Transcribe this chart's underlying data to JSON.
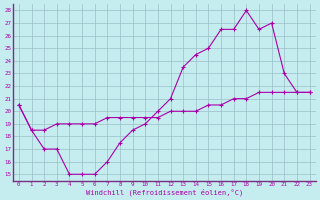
{
  "xlabel": "Windchill (Refroidissement éolien,°C)",
  "bg_color": "#c5edf0",
  "grid_color": "#9bbfc8",
  "line_color": "#aa00aa",
  "spine_color": "#7a3080",
  "xlim": [
    -0.5,
    23.5
  ],
  "ylim": [
    14.5,
    28.5
  ],
  "xticks": [
    0,
    1,
    2,
    3,
    4,
    5,
    6,
    7,
    8,
    9,
    10,
    11,
    12,
    13,
    14,
    15,
    16,
    17,
    18,
    19,
    20,
    21,
    22,
    23
  ],
  "yticks": [
    15,
    16,
    17,
    18,
    19,
    20,
    21,
    22,
    23,
    24,
    25,
    26,
    27,
    28
  ],
  "curve1_x": [
    0,
    1,
    2,
    3,
    4,
    5,
    6,
    7,
    8,
    9,
    10,
    11,
    12,
    13,
    14,
    15,
    16,
    17,
    18,
    19,
    20,
    21,
    22,
    23
  ],
  "curve1_y": [
    20.5,
    18.5,
    17.0,
    17.0,
    15.0,
    15.0,
    15.0,
    16.0,
    17.5,
    18.5,
    19.0,
    20.0,
    21.0,
    23.5,
    24.5,
    25.0,
    26.5,
    26.5,
    28.0,
    26.5,
    27.0,
    23.0,
    21.5,
    21.5
  ],
  "curve2_x": [
    0,
    1,
    2,
    3,
    4,
    5,
    6,
    7,
    8,
    9,
    10,
    11,
    12,
    13,
    14,
    15,
    16,
    17,
    18,
    19,
    20,
    21,
    22,
    23
  ],
  "curve2_y": [
    20.5,
    18.5,
    18.5,
    19.0,
    19.0,
    19.0,
    19.0,
    19.5,
    19.5,
    19.5,
    19.5,
    19.5,
    20.0,
    20.0,
    20.0,
    20.5,
    20.5,
    21.0,
    21.0,
    21.5,
    21.5,
    21.5,
    21.5,
    21.5
  ],
  "tick_fontsize": 4.2,
  "label_fontsize": 5.0
}
